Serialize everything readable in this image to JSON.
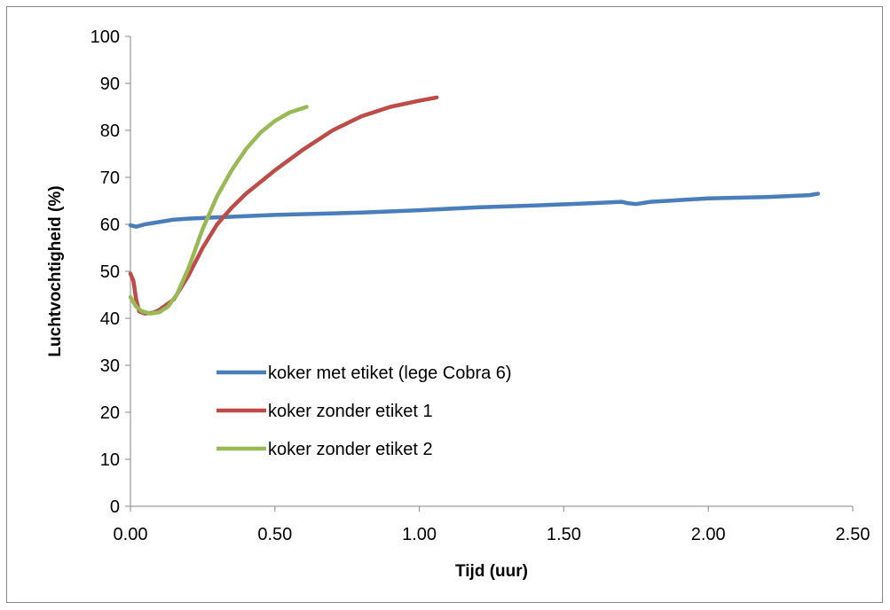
{
  "chart_data": {
    "type": "line",
    "title": "",
    "xlabel": "Tijd (uur)",
    "ylabel": "Luchtvochtigheid (%)",
    "xlim": [
      0,
      2.5
    ],
    "ylim": [
      0,
      100
    ],
    "x_ticks": [
      "0.00",
      "0.50",
      "1.00",
      "1.50",
      "2.00",
      "2.50"
    ],
    "x_tick_values": [
      0,
      0.5,
      1.0,
      1.5,
      2.0,
      2.5
    ],
    "y_ticks": [
      "0",
      "10",
      "20",
      "30",
      "40",
      "50",
      "60",
      "70",
      "80",
      "90",
      "100"
    ],
    "y_tick_values": [
      0,
      10,
      20,
      30,
      40,
      50,
      60,
      70,
      80,
      90,
      100
    ],
    "grid": false,
    "legend_position": "center-left",
    "series": [
      {
        "name": "koker met etiket (lege Cobra 6)",
        "color": "#4a7ebb",
        "x": [
          0,
          0.02,
          0.05,
          0.1,
          0.15,
          0.2,
          0.3,
          0.5,
          0.8,
          1.0,
          1.2,
          1.4,
          1.6,
          1.7,
          1.72,
          1.75,
          1.8,
          2.0,
          2.2,
          2.35,
          2.38
        ],
        "y": [
          59.8,
          59.5,
          60.0,
          60.5,
          61.0,
          61.2,
          61.5,
          62.0,
          62.5,
          63.0,
          63.6,
          64.0,
          64.5,
          64.8,
          64.5,
          64.3,
          64.8,
          65.5,
          65.8,
          66.2,
          66.5
        ]
      },
      {
        "name": "koker zonder etiket 1",
        "color": "#be4b48",
        "x": [
          0,
          0.01,
          0.02,
          0.03,
          0.05,
          0.08,
          0.1,
          0.15,
          0.2,
          0.25,
          0.3,
          0.35,
          0.4,
          0.5,
          0.6,
          0.7,
          0.8,
          0.9,
          1.0,
          1.06
        ],
        "y": [
          49.5,
          48.0,
          44.0,
          41.5,
          41.0,
          41.2,
          41.8,
          44.0,
          49.0,
          55.0,
          60.0,
          63.5,
          66.5,
          71.5,
          76.0,
          80.0,
          83.0,
          85.0,
          86.3,
          87.0
        ]
      },
      {
        "name": "koker zonder etiket 2",
        "color": "#98b954",
        "x": [
          0,
          0.02,
          0.04,
          0.07,
          0.1,
          0.13,
          0.16,
          0.2,
          0.25,
          0.3,
          0.35,
          0.4,
          0.45,
          0.5,
          0.55,
          0.6,
          0.61
        ],
        "y": [
          44.5,
          42.5,
          41.5,
          41.0,
          41.3,
          42.5,
          45.0,
          50.5,
          59.0,
          66.0,
          71.5,
          76.0,
          79.5,
          82.0,
          83.8,
          84.8,
          85.0
        ]
      }
    ]
  }
}
